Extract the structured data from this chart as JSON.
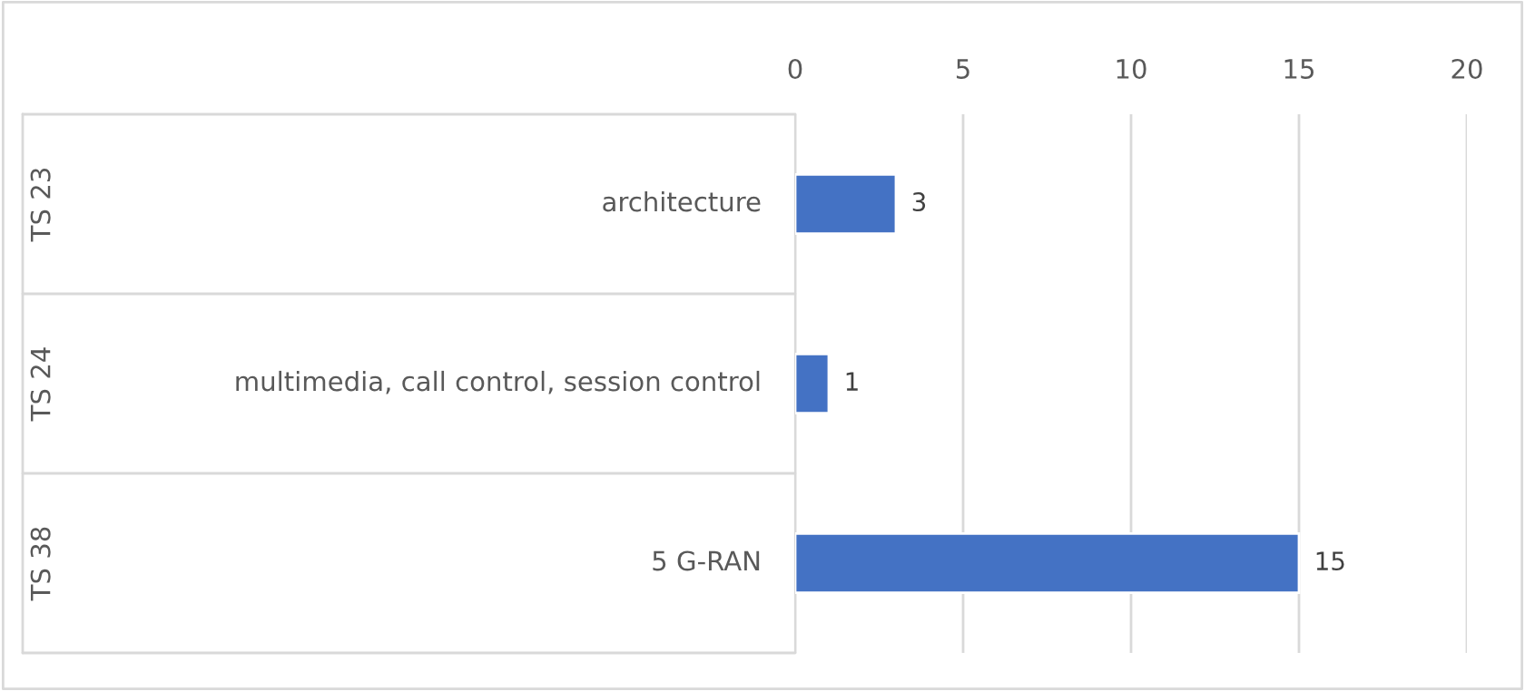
{
  "chart_data": {
    "type": "bar",
    "orientation": "horizontal",
    "categories": [
      "architecture",
      "multimedia, call control, session control",
      "5 G-RAN"
    ],
    "values": [
      3,
      1,
      15
    ],
    "color": "#4472c4",
    "xlim": [
      0,
      20
    ],
    "xticks": [
      0,
      5,
      10,
      15,
      20
    ],
    "grid": "x",
    "data_labels": true,
    "annotations": [
      "TS 23",
      "TS 24",
      "TS 38"
    ]
  }
}
